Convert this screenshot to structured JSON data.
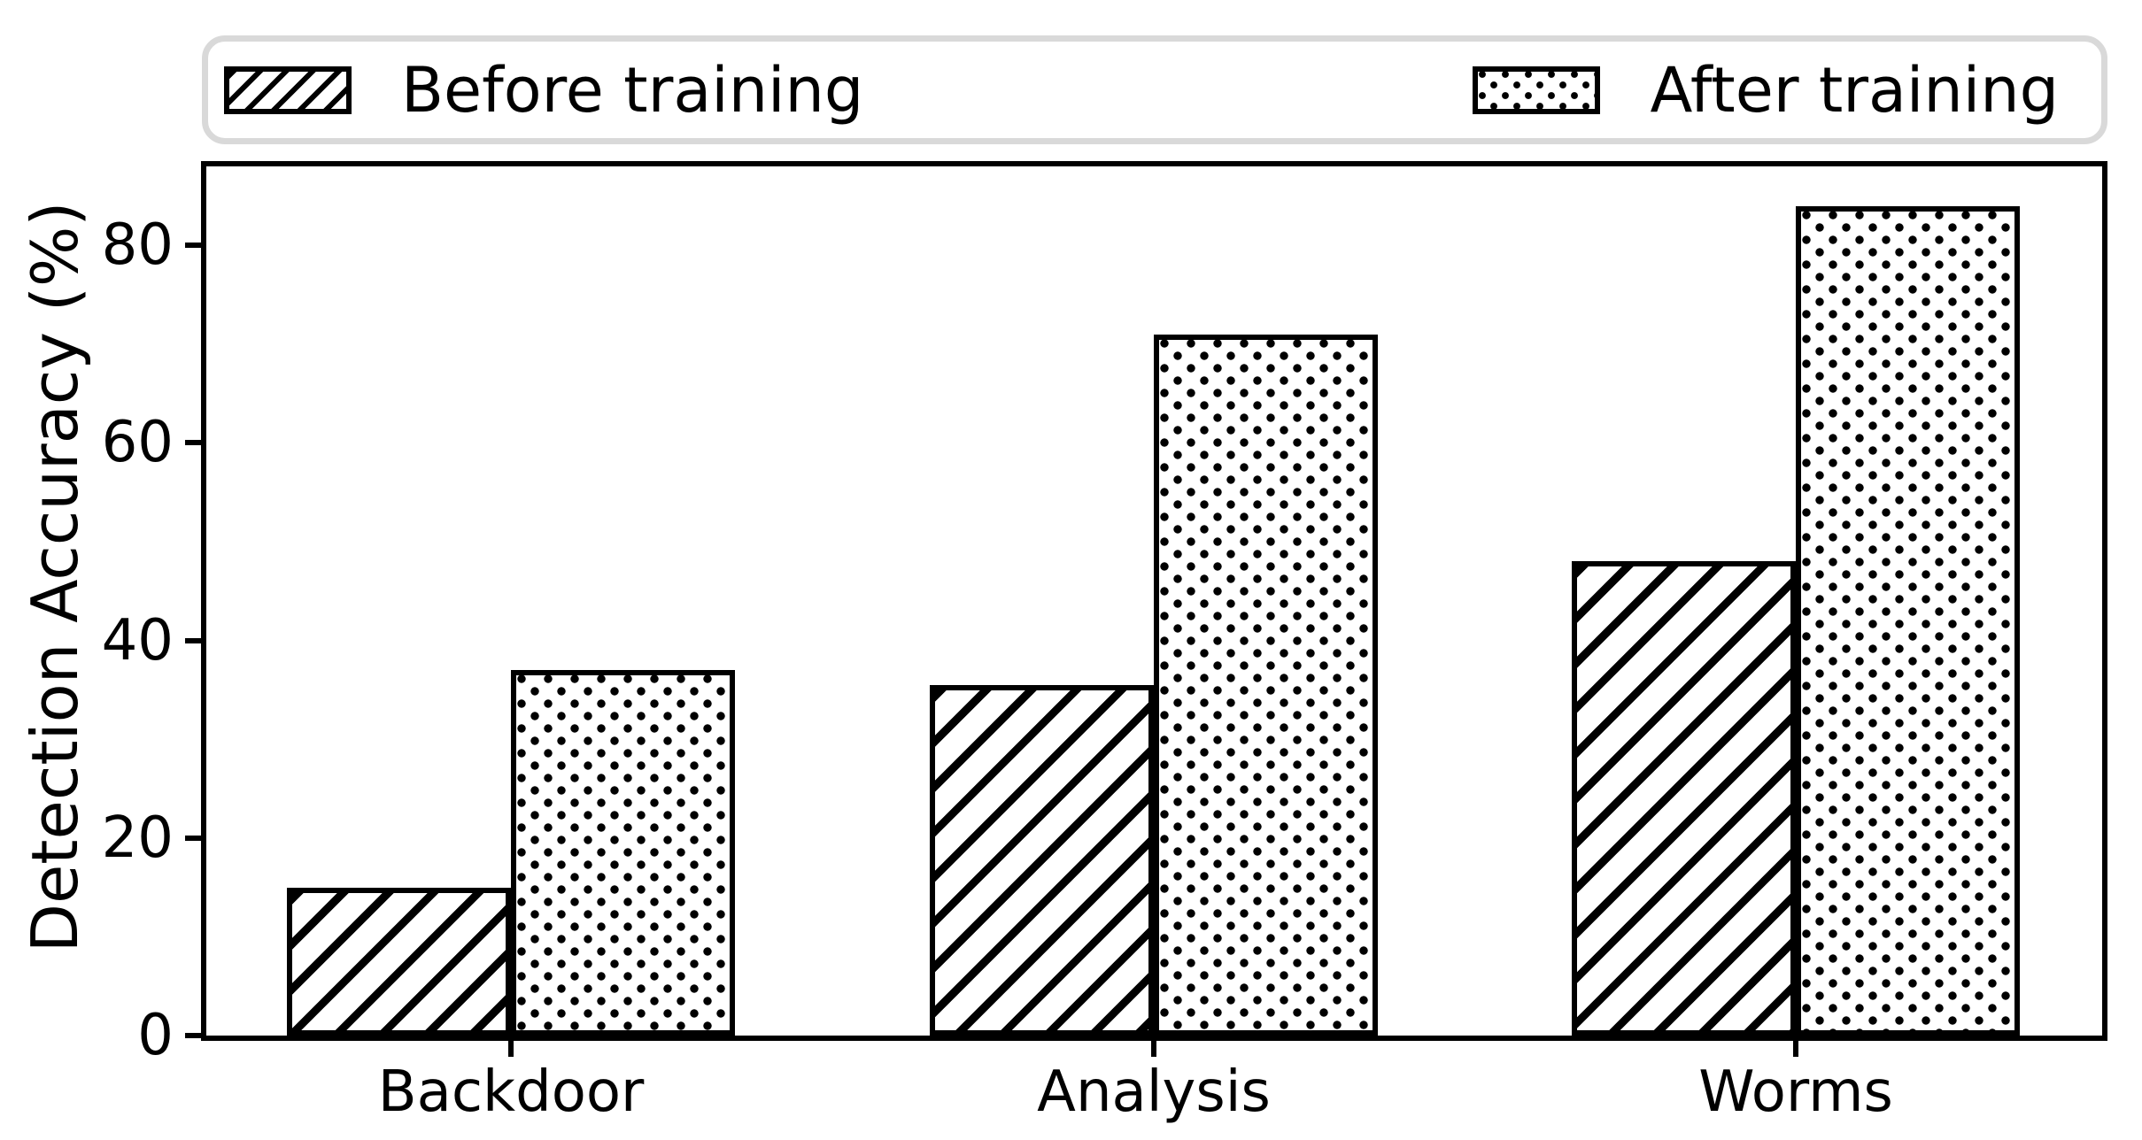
{
  "chart_data": {
    "type": "bar",
    "title": "",
    "categories": [
      "Backdoor",
      "Analysis",
      "Worms"
    ],
    "series": [
      {
        "name": "Before training",
        "pattern": "diagonal-hatch",
        "values": [
          15,
          35.5,
          48
        ]
      },
      {
        "name": "After training",
        "pattern": "dots",
        "values": [
          37,
          71,
          84
        ]
      }
    ],
    "xlabel": "",
    "ylabel": "Detection Accuracy (%)",
    "yticks": [
      0,
      20,
      40,
      60,
      80
    ],
    "ylim": [
      0,
      88
    ],
    "grid": false,
    "legend_position": "top-spanning-full-width",
    "colors": {
      "bar_fill": "#ffffff",
      "bar_edge": "#000000",
      "text": "#000000",
      "legend_border": "#d9d9d9",
      "background": "#ffffff"
    }
  }
}
